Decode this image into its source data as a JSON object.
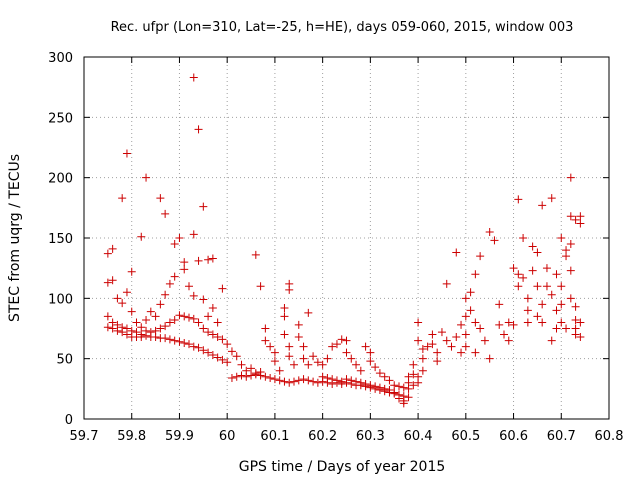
{
  "chart_data": {
    "type": "scatter",
    "title": "Rec. ufpr (Lon=310, Lat=-25, h=HE), days 059-060, 2015, window 003",
    "xlabel": "GPS time / Days of year 2015",
    "ylabel": "STEC from uqrg / TECUs",
    "xlim": [
      59.7,
      60.8
    ],
    "ylim": [
      0,
      300
    ],
    "xticks": [
      59.7,
      59.8,
      59.9,
      60.0,
      60.1,
      60.2,
      60.3,
      60.4,
      60.5,
      60.6,
      60.7,
      60.8
    ],
    "xtick_labels": [
      "59.7",
      "59.8",
      "59.9",
      "60",
      "60.1",
      "60.2",
      "60.3",
      "60.4",
      "60.5",
      "60.6",
      "60.7",
      "60.8"
    ],
    "yticks": [
      0,
      50,
      100,
      150,
      200,
      250,
      300
    ],
    "ytick_labels": [
      "0",
      "50",
      "100",
      "150",
      "200",
      "250",
      "300"
    ],
    "grid": true,
    "marker": "+",
    "color": "#cc0000",
    "points": [
      [
        59.75,
        137
      ],
      [
        59.76,
        141
      ],
      [
        59.78,
        183
      ],
      [
        59.79,
        220
      ],
      [
        59.8,
        122
      ],
      [
        59.82,
        151
      ],
      [
        59.83,
        200
      ],
      [
        59.86,
        183
      ],
      [
        59.87,
        170
      ],
      [
        59.89,
        145
      ],
      [
        59.9,
        150
      ],
      [
        59.91,
        130
      ],
      [
        59.93,
        283
      ],
      [
        59.93,
        153
      ],
      [
        59.94,
        240
      ],
      [
        59.95,
        176
      ],
      [
        59.96,
        132
      ],
      [
        59.97,
        133
      ],
      [
        59.99,
        108
      ],
      [
        60.06,
        136
      ],
      [
        60.07,
        110
      ],
      [
        60.13,
        112
      ],
      [
        60.13,
        107
      ],
      [
        59.75,
        113
      ],
      [
        59.76,
        115
      ],
      [
        59.77,
        100
      ],
      [
        59.78,
        96
      ],
      [
        59.79,
        105
      ],
      [
        59.8,
        89
      ],
      [
        59.81,
        80
      ],
      [
        59.82,
        76
      ],
      [
        59.83,
        82
      ],
      [
        59.84,
        89
      ],
      [
        59.85,
        85
      ],
      [
        59.86,
        95
      ],
      [
        59.87,
        103
      ],
      [
        59.88,
        112
      ],
      [
        59.89,
        118
      ],
      [
        59.91,
        124
      ],
      [
        59.92,
        110
      ],
      [
        59.93,
        102
      ],
      [
        59.94,
        131
      ],
      [
        59.95,
        99
      ],
      [
        59.96,
        85
      ],
      [
        59.97,
        92
      ],
      [
        59.98,
        80
      ],
      [
        59.75,
        85
      ],
      [
        59.76,
        80
      ],
      [
        59.77,
        78
      ],
      [
        59.78,
        76
      ],
      [
        59.79,
        75
      ],
      [
        59.8,
        73
      ],
      [
        59.81,
        72
      ],
      [
        59.82,
        70
      ],
      [
        59.83,
        73
      ],
      [
        59.84,
        72
      ],
      [
        59.85,
        73
      ],
      [
        59.86,
        75
      ],
      [
        59.87,
        77
      ],
      [
        59.88,
        80
      ],
      [
        59.89,
        82
      ],
      [
        59.9,
        86
      ],
      [
        59.91,
        85
      ],
      [
        59.92,
        84
      ],
      [
        59.93,
        83
      ],
      [
        59.94,
        80
      ],
      [
        59.95,
        75
      ],
      [
        59.96,
        72
      ],
      [
        59.97,
        70
      ],
      [
        59.98,
        68
      ],
      [
        59.99,
        66
      ],
      [
        59.75,
        76
      ],
      [
        59.76,
        75
      ],
      [
        59.77,
        73
      ],
      [
        59.78,
        72
      ],
      [
        59.79,
        70
      ],
      [
        59.8,
        68
      ],
      [
        59.81,
        68
      ],
      [
        59.82,
        68
      ],
      [
        59.83,
        69
      ],
      [
        59.84,
        68
      ],
      [
        59.85,
        68
      ],
      [
        59.86,
        67
      ],
      [
        59.87,
        67
      ],
      [
        59.88,
        66
      ],
      [
        59.89,
        65
      ],
      [
        59.9,
        64
      ],
      [
        59.91,
        63
      ],
      [
        59.92,
        62
      ],
      [
        59.93,
        60
      ],
      [
        59.94,
        59
      ],
      [
        59.95,
        57
      ],
      [
        59.96,
        55
      ],
      [
        59.97,
        53
      ],
      [
        59.98,
        51
      ],
      [
        59.99,
        49
      ],
      [
        60.0,
        47
      ],
      [
        60.0,
        62
      ],
      [
        60.01,
        56
      ],
      [
        60.02,
        52
      ],
      [
        60.03,
        45
      ],
      [
        60.04,
        40
      ],
      [
        60.05,
        42
      ],
      [
        60.06,
        38
      ],
      [
        60.07,
        39
      ],
      [
        60.08,
        75
      ],
      [
        60.08,
        65
      ],
      [
        60.09,
        60
      ],
      [
        60.1,
        55
      ],
      [
        60.1,
        48
      ],
      [
        60.11,
        40
      ],
      [
        60.12,
        92
      ],
      [
        60.12,
        85
      ],
      [
        60.12,
        70
      ],
      [
        60.13,
        60
      ],
      [
        60.13,
        52
      ],
      [
        60.14,
        45
      ],
      [
        60.15,
        78
      ],
      [
        60.15,
        68
      ],
      [
        60.16,
        60
      ],
      [
        60.16,
        50
      ],
      [
        60.17,
        45
      ],
      [
        60.17,
        88
      ],
      [
        60.01,
        34
      ],
      [
        60.02,
        35
      ],
      [
        60.03,
        36
      ],
      [
        60.04,
        35
      ],
      [
        60.05,
        36
      ],
      [
        60.06,
        37
      ],
      [
        60.07,
        36
      ],
      [
        60.08,
        35
      ],
      [
        60.09,
        34
      ],
      [
        60.1,
        33
      ],
      [
        60.11,
        32
      ],
      [
        60.12,
        31
      ],
      [
        60.13,
        30
      ],
      [
        60.14,
        31
      ],
      [
        60.15,
        32
      ],
      [
        60.16,
        33
      ],
      [
        60.17,
        32
      ],
      [
        60.18,
        31
      ],
      [
        60.19,
        30
      ],
      [
        60.2,
        31
      ],
      [
        60.21,
        30
      ],
      [
        60.22,
        29
      ],
      [
        60.23,
        30
      ],
      [
        60.24,
        29
      ],
      [
        60.18,
        52
      ],
      [
        60.19,
        47
      ],
      [
        60.2,
        45
      ],
      [
        60.21,
        50
      ],
      [
        60.22,
        60
      ],
      [
        60.23,
        62
      ],
      [
        60.24,
        66
      ],
      [
        60.25,
        65
      ],
      [
        60.25,
        55
      ],
      [
        60.26,
        50
      ],
      [
        60.27,
        45
      ],
      [
        60.28,
        40
      ],
      [
        60.29,
        60
      ],
      [
        60.3,
        55
      ],
      [
        60.3,
        48
      ],
      [
        60.31,
        43
      ],
      [
        60.32,
        38
      ],
      [
        60.33,
        35
      ],
      [
        60.34,
        32
      ],
      [
        60.2,
        35
      ],
      [
        60.21,
        34
      ],
      [
        60.22,
        33
      ],
      [
        60.23,
        32
      ],
      [
        60.24,
        31
      ],
      [
        60.25,
        30
      ],
      [
        60.26,
        29
      ],
      [
        60.27,
        28
      ],
      [
        60.28,
        28
      ],
      [
        60.29,
        27
      ],
      [
        60.3,
        26
      ],
      [
        60.31,
        25
      ],
      [
        60.32,
        24
      ],
      [
        60.33,
        23
      ],
      [
        60.34,
        22
      ],
      [
        60.35,
        21
      ],
      [
        60.36,
        20
      ],
      [
        60.37,
        19
      ],
      [
        60.25,
        33
      ],
      [
        60.26,
        32
      ],
      [
        60.27,
        31
      ],
      [
        60.28,
        30
      ],
      [
        60.29,
        29
      ],
      [
        60.3,
        28
      ],
      [
        60.31,
        27
      ],
      [
        60.32,
        26
      ],
      [
        60.33,
        25
      ],
      [
        60.34,
        24
      ],
      [
        60.35,
        22
      ],
      [
        60.36,
        20
      ],
      [
        60.36,
        17
      ],
      [
        60.37,
        15
      ],
      [
        60.37,
        13
      ],
      [
        60.38,
        18
      ],
      [
        60.38,
        25
      ],
      [
        60.39,
        28
      ],
      [
        60.4,
        30
      ],
      [
        60.4,
        35
      ],
      [
        60.41,
        40
      ],
      [
        60.35,
        28
      ],
      [
        60.36,
        27
      ],
      [
        60.37,
        26
      ],
      [
        60.38,
        30
      ],
      [
        60.38,
        35
      ],
      [
        60.39,
        37
      ],
      [
        60.39,
        45
      ],
      [
        60.4,
        80
      ],
      [
        60.4,
        65
      ],
      [
        60.41,
        58
      ],
      [
        60.41,
        50
      ],
      [
        60.42,
        60
      ],
      [
        60.43,
        70
      ],
      [
        60.43,
        62
      ],
      [
        60.44,
        55
      ],
      [
        60.44,
        48
      ],
      [
        60.45,
        72
      ],
      [
        60.46,
        112
      ],
      [
        60.46,
        65
      ],
      [
        60.47,
        60
      ],
      [
        60.48,
        138
      ],
      [
        60.48,
        68
      ],
      [
        60.49,
        78
      ],
      [
        60.49,
        55
      ],
      [
        60.5,
        100
      ],
      [
        60.5,
        85
      ],
      [
        60.5,
        70
      ],
      [
        60.5,
        60
      ],
      [
        60.51,
        105
      ],
      [
        60.51,
        90
      ],
      [
        60.52,
        120
      ],
      [
        60.52,
        80
      ],
      [
        60.52,
        55
      ],
      [
        60.53,
        135
      ],
      [
        60.53,
        75
      ],
      [
        60.54,
        65
      ],
      [
        60.55,
        50
      ],
      [
        60.55,
        155
      ],
      [
        60.56,
        148
      ],
      [
        60.57,
        95
      ],
      [
        60.57,
        78
      ],
      [
        60.58,
        70
      ],
      [
        60.59,
        65
      ],
      [
        60.59,
        80
      ],
      [
        60.6,
        78
      ],
      [
        60.6,
        125
      ],
      [
        60.61,
        182
      ],
      [
        60.61,
        120
      ],
      [
        60.61,
        110
      ],
      [
        60.62,
        150
      ],
      [
        60.62,
        117
      ],
      [
        60.63,
        100
      ],
      [
        60.63,
        90
      ],
      [
        60.63,
        80
      ],
      [
        60.64,
        143
      ],
      [
        60.64,
        123
      ],
      [
        60.65,
        138
      ],
      [
        60.65,
        110
      ],
      [
        60.65,
        85
      ],
      [
        60.66,
        177
      ],
      [
        60.66,
        95
      ],
      [
        60.66,
        80
      ],
      [
        60.67,
        125
      ],
      [
        60.67,
        110
      ],
      [
        60.68,
        183
      ],
      [
        60.68,
        103
      ],
      [
        60.68,
        65
      ],
      [
        60.69,
        120
      ],
      [
        60.69,
        90
      ],
      [
        60.69,
        75
      ],
      [
        60.7,
        150
      ],
      [
        60.7,
        110
      ],
      [
        60.7,
        95
      ],
      [
        60.7,
        80
      ],
      [
        60.71,
        140
      ],
      [
        60.71,
        135
      ],
      [
        60.71,
        75
      ],
      [
        60.72,
        200
      ],
      [
        60.72,
        168
      ],
      [
        60.72,
        145
      ],
      [
        60.72,
        123
      ],
      [
        60.72,
        100
      ],
      [
        60.73,
        165
      ],
      [
        60.73,
        93
      ],
      [
        60.73,
        75
      ],
      [
        60.73,
        70
      ],
      [
        60.73,
        82
      ],
      [
        60.74,
        168
      ],
      [
        60.74,
        162
      ],
      [
        60.74,
        80
      ],
      [
        60.74,
        68
      ]
    ]
  }
}
